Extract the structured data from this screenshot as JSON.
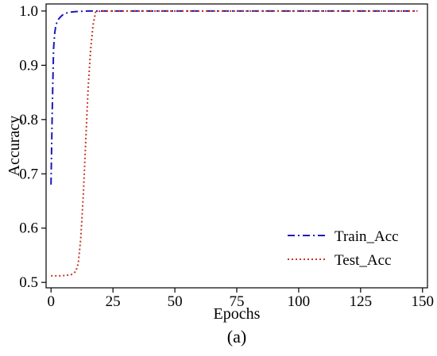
{
  "chart_data": {
    "type": "line",
    "title": "",
    "xlabel": "Epochs",
    "ylabel": "Accuracy",
    "xlim": [
      -2,
      152
    ],
    "ylim": [
      0.49,
      1.013
    ],
    "x_ticks": [
      0,
      25,
      50,
      75,
      100,
      125,
      150
    ],
    "y_ticks": [
      0.5,
      0.6,
      0.7,
      0.8,
      0.9,
      1.0
    ],
    "y_tick_labels": [
      "0.5",
      "0.6",
      "0.7",
      "0.8",
      "0.9",
      "1.0"
    ],
    "grid": false,
    "legend_position": "bottom-right",
    "series": [
      {
        "name": "Train_Acc",
        "color": "#1a1ab8",
        "style": "dashdot",
        "x": [
          0,
          0.5,
          1,
          1.5,
          2,
          3,
          4,
          5,
          6,
          8,
          10,
          15,
          20,
          30,
          50,
          75,
          100,
          125,
          148
        ],
        "y": [
          0.68,
          0.82,
          0.93,
          0.96,
          0.975,
          0.985,
          0.99,
          0.994,
          0.996,
          0.998,
          0.999,
          1.0,
          1.0,
          1.0,
          1.0,
          1.0,
          1.0,
          1.0,
          1.0
        ]
      },
      {
        "name": "Test_Acc",
        "color": "#c0392b",
        "style": "dotted",
        "x": [
          0,
          4,
          8,
          10,
          11,
          12,
          13,
          14,
          15,
          16,
          17,
          18,
          20,
          30,
          50,
          75,
          100,
          125,
          148
        ],
        "y": [
          0.512,
          0.512,
          0.514,
          0.52,
          0.535,
          0.58,
          0.66,
          0.76,
          0.86,
          0.93,
          0.975,
          0.998,
          1.0,
          1.0,
          1.0,
          1.0,
          1.0,
          1.0,
          1.0
        ]
      }
    ]
  },
  "caption": "(a)"
}
